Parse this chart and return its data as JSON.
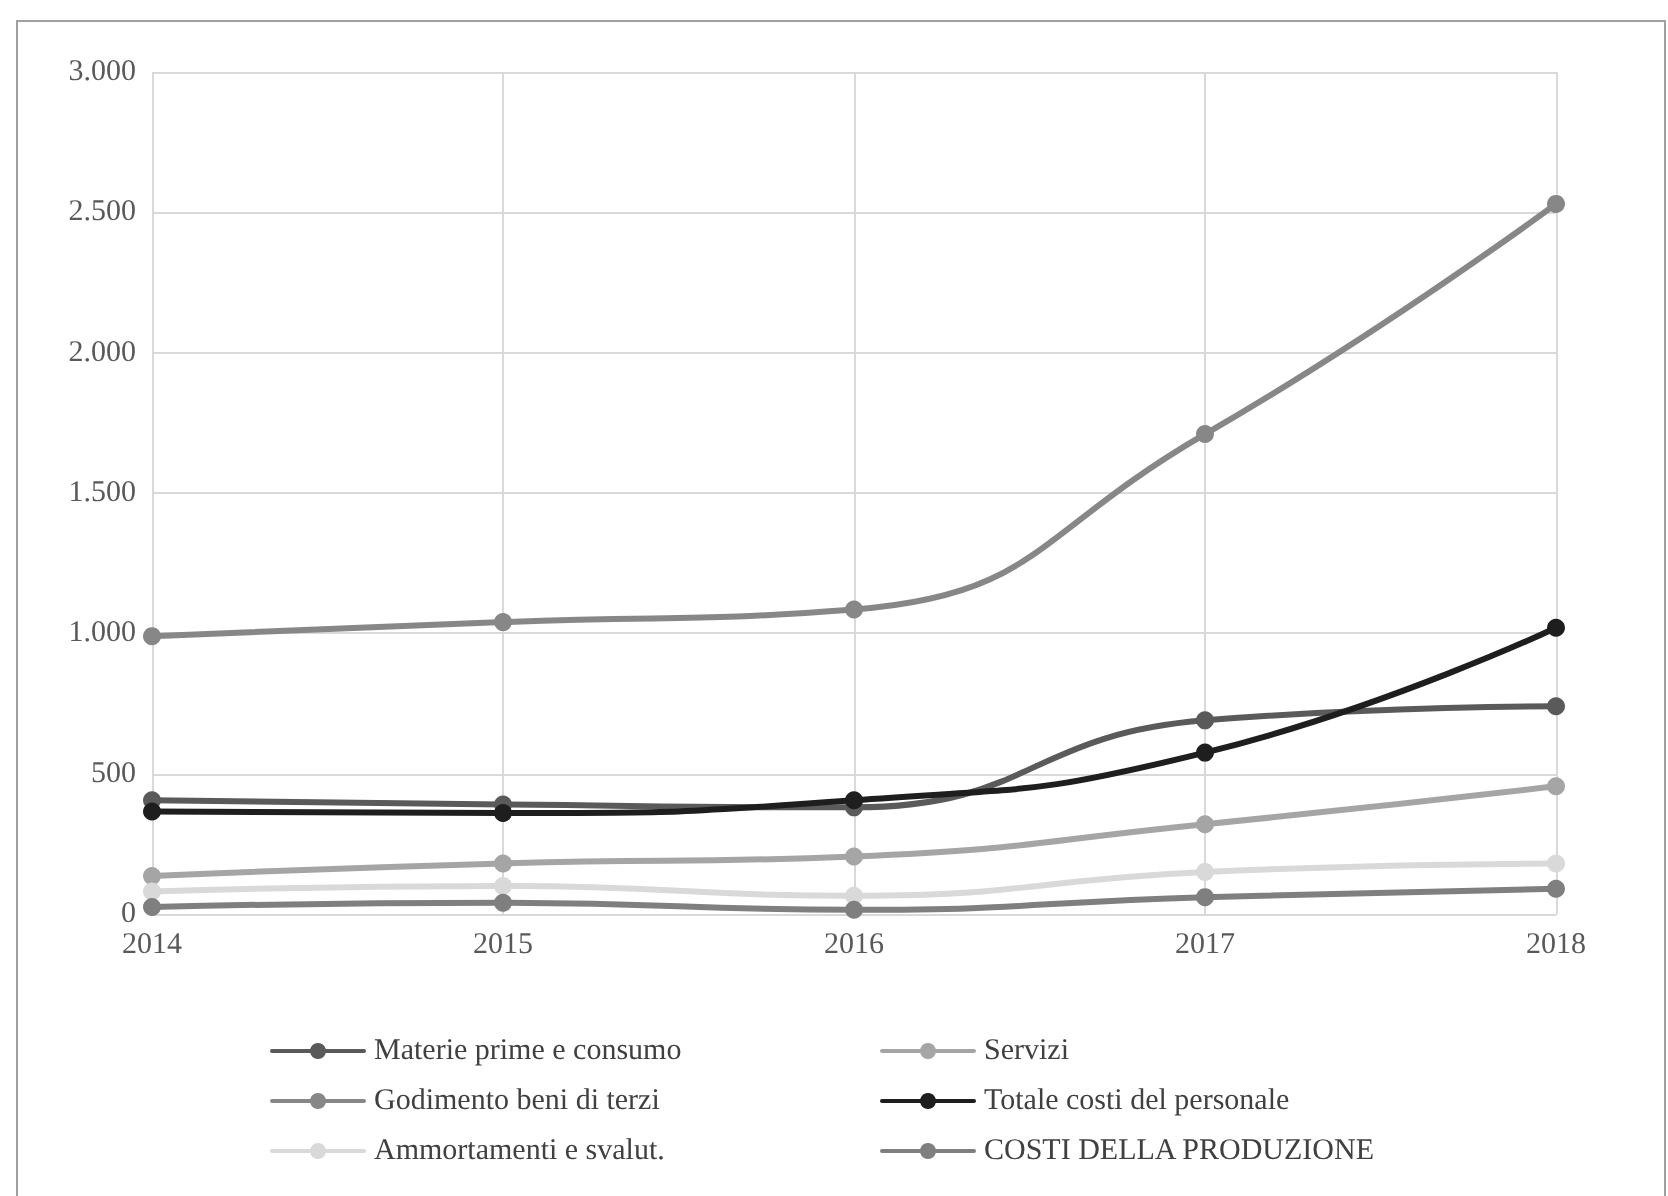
{
  "chart_data": {
    "type": "line",
    "categories": [
      "2014",
      "2015",
      "2016",
      "2017",
      "2018"
    ],
    "series": [
      {
        "name": "Materie prime e consumo",
        "color": "#5a5a5a",
        "values": [
          405,
          390,
          380,
          690,
          740
        ]
      },
      {
        "name": "Servizi",
        "color": "#a5a5a5",
        "values": [
          135,
          180,
          205,
          320,
          455
        ]
      },
      {
        "name": "Godimento beni di terzi",
        "color": "#878787",
        "values": [
          990,
          1040,
          1085,
          1710,
          2530
        ]
      },
      {
        "name": "Totale costi del personale",
        "color": "#1e1e1e",
        "values": [
          365,
          360,
          405,
          575,
          1020
        ]
      },
      {
        "name": "Ammortamenti e svalut.",
        "color": "#d9d9d9",
        "values": [
          80,
          100,
          65,
          150,
          180
        ]
      },
      {
        "name": "COSTI DELLA PRODUZIONE",
        "color": "#7f7f7f",
        "values": [
          25,
          40,
          15,
          60,
          90
        ]
      }
    ],
    "ylim": [
      0,
      3000
    ],
    "yticks": [
      {
        "value": 0,
        "label": "0"
      },
      {
        "value": 500,
        "label": "500"
      },
      {
        "value": 1000,
        "label": "1.000"
      },
      {
        "value": 1500,
        "label": "1.500"
      },
      {
        "value": 2000,
        "label": "2.000"
      },
      {
        "value": 2500,
        "label": "2.500"
      },
      {
        "value": 3000,
        "label": "3.000"
      }
    ],
    "grid": true,
    "legend": "bottom",
    "marker": "circle",
    "line_style": "solid"
  }
}
